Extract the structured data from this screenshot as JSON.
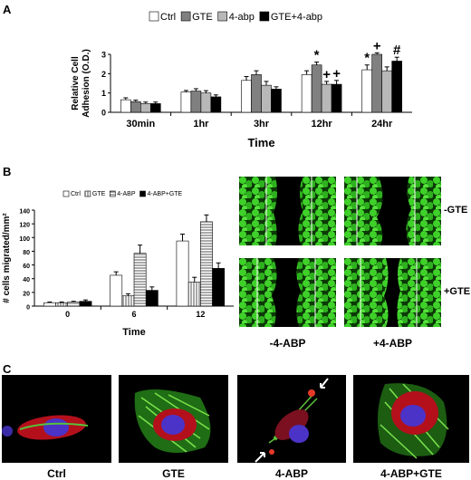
{
  "panels": {
    "a": "A",
    "b": "B",
    "c": "C"
  },
  "chart_data": [
    {
      "type": "bar",
      "categories": [
        "30min",
        "1hr",
        "3hr",
        "12hr",
        "24hr"
      ],
      "series": [
        {
          "name": "Ctrl",
          "values": [
            0.65,
            1.05,
            1.65,
            1.95,
            2.2
          ],
          "err": [
            0.1,
            0.08,
            0.2,
            0.2,
            0.25
          ]
        },
        {
          "name": "GTE",
          "values": [
            0.55,
            1.1,
            1.95,
            2.45,
            3.0
          ],
          "err": [
            0.08,
            0.12,
            0.2,
            0.15,
            0.08
          ]
        },
        {
          "name": "4-abp",
          "values": [
            0.45,
            1.0,
            1.4,
            1.45,
            2.15
          ],
          "err": [
            0.08,
            0.12,
            0.2,
            0.15,
            0.2
          ]
        },
        {
          "name": "GTE+4-abp",
          "values": [
            0.45,
            0.8,
            1.2,
            1.45,
            2.65
          ],
          "err": [
            0.08,
            0.1,
            0.12,
            0.2,
            0.2
          ]
        }
      ],
      "colors": [
        "#ffffff",
        "#808080",
        "#b8b8b8",
        "#000000"
      ],
      "ylabel": "Relative Cell\nAdhesion (O.D.)",
      "xlabel": "Time",
      "ylim": [
        0,
        3
      ],
      "yticks": [
        "0",
        "1",
        "2",
        "3"
      ],
      "annotations": [
        {
          "category": "12hr",
          "series": "GTE",
          "text": "*"
        },
        {
          "category": "12hr",
          "series": "4-abp",
          "text": "+"
        },
        {
          "category": "12hr",
          "series": "GTE+4-abp",
          "text": "+"
        },
        {
          "category": "24hr",
          "series": "Ctrl",
          "text": "*"
        },
        {
          "category": "24hr",
          "series": "GTE",
          "text": "+"
        },
        {
          "category": "24hr",
          "series": "GTE+4-abp",
          "text": "#"
        }
      ],
      "legend": "top"
    },
    {
      "type": "bar",
      "categories": [
        "0",
        "6",
        "12"
      ],
      "series": [
        {
          "name": "Ctrl",
          "values": [
            5,
            45,
            95
          ],
          "err": [
            1,
            5,
            10
          ]
        },
        {
          "name": "GTE",
          "values": [
            5,
            15,
            35
          ],
          "err": [
            1,
            3,
            7
          ]
        },
        {
          "name": "4-ABP",
          "values": [
            6,
            77,
            123
          ],
          "err": [
            1,
            12,
            10
          ]
        },
        {
          "name": "4-ABP+GTE",
          "values": [
            7,
            23,
            55
          ],
          "err": [
            2,
            5,
            8
          ]
        }
      ],
      "colors": [
        "#ffffff",
        "#cfcfcf",
        "#e0e0e0",
        "#000000"
      ],
      "patterns": [
        "solid",
        "vlines",
        "hlines",
        "solid"
      ],
      "ylabel": "# cells migrated/mm²",
      "xlabel": "Time",
      "ylim": [
        0,
        140
      ],
      "yticks": [
        "0",
        "20",
        "40",
        "60",
        "80",
        "100",
        "120",
        "140"
      ],
      "legend": "top"
    }
  ],
  "panel_b_images": {
    "row_labels": [
      "-GTE",
      "+GTE"
    ],
    "col_labels": [
      "-4-ABP",
      "+4-ABP"
    ]
  },
  "panel_c_images": {
    "labels": [
      "Ctrl",
      "GTE",
      "4-ABP",
      "4-ABP+GTE"
    ]
  }
}
